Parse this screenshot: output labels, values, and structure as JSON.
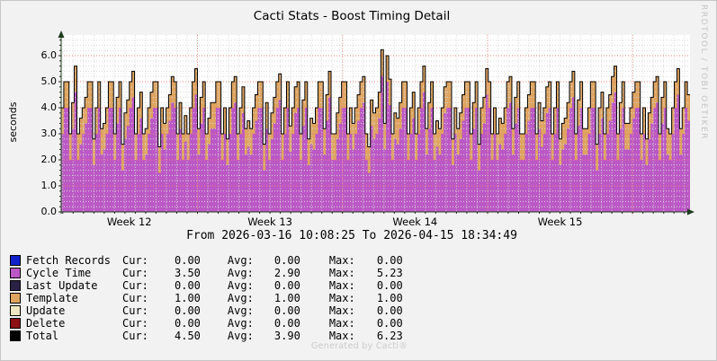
{
  "title": "Cacti Stats - Boost Timing Detail",
  "watermark_right": "RRDTOOL / TOBI OETIKER",
  "footer": "Generated by Cacti®",
  "y_axis": {
    "label": "seconds",
    "tick_labels": [
      "0.0",
      "1.0",
      "2.0",
      "3.0",
      "4.0",
      "5.0",
      "6.0"
    ]
  },
  "x_axis": {
    "week_labels": [
      "Week 12",
      "Week 13",
      "Week 14",
      "Week 15"
    ],
    "from_line": "From 2026-03-16 10:08:25 To 2026-04-15 18:34:49"
  },
  "legend": {
    "col_labels": [
      "Cur:",
      "Avg:",
      "Max:"
    ],
    "rows": [
      {
        "name": "Fetch Records",
        "color": "#1122CC",
        "cur": "0.00",
        "avg": "0.00",
        "max": "0.00"
      },
      {
        "name": "Cycle Time",
        "color": "#BB58C5",
        "cur": "3.50",
        "avg": "2.90",
        "max": "5.23"
      },
      {
        "name": "Last Update",
        "color": "#2A2244",
        "cur": "0.00",
        "avg": "0.00",
        "max": "0.00"
      },
      {
        "name": "Template",
        "color": "#DFA45F",
        "cur": "1.00",
        "avg": "1.00",
        "max": "1.00"
      },
      {
        "name": "Update",
        "color": "#EDE8C2",
        "cur": "0.00",
        "avg": "0.00",
        "max": "0.00"
      },
      {
        "name": "Delete",
        "color": "#8C1014",
        "cur": "0.00",
        "avg": "0.00",
        "max": "0.00"
      },
      {
        "name": "Total",
        "color": "#000000",
        "cur": "4.50",
        "avg": "3.90",
        "max": "6.23"
      }
    ]
  },
  "chart_data": {
    "type": "area",
    "title": "Cacti Stats - Boost Timing Detail",
    "xlabel": "",
    "ylabel": "seconds",
    "ylim": [
      0,
      6.8
    ],
    "x_range": [
      "2026-03-16 10:08:25",
      "2026-04-15 18:34:49"
    ],
    "grid": {
      "horizontal_minor_step": 0.2,
      "horizontal_major_step": 1.0,
      "vertical_minor_step_days": 0.5,
      "grid_on": true
    },
    "days_total": 30.35,
    "first_minor_offset_days": 0.078,
    "week_boundaries_days": [
      6.578,
      13.578,
      20.578,
      27.578
    ],
    "template_constant": 1.0,
    "total_rule": "total = cycle_time + template",
    "series_stats": [
      {
        "name": "Fetch Records",
        "cur": 0.0,
        "avg": 0.0,
        "max": 0.0
      },
      {
        "name": "Cycle Time",
        "cur": 3.5,
        "avg": 2.9,
        "max": 5.23
      },
      {
        "name": "Last Update",
        "cur": 0.0,
        "avg": 0.0,
        "max": 0.0
      },
      {
        "name": "Template",
        "cur": 1.0,
        "avg": 1.0,
        "max": 1.0
      },
      {
        "name": "Update",
        "cur": 0.0,
        "avg": 0.0,
        "max": 0.0
      },
      {
        "name": "Delete",
        "cur": 0.0,
        "avg": 0.0,
        "max": 0.0
      },
      {
        "name": "Total",
        "cur": 4.5,
        "avg": 3.9,
        "max": 6.23
      }
    ],
    "samples_per_day": 8,
    "cycle_time_daily_samples": [
      [
        3.0,
        4.0,
        4.0,
        2.0,
        3.2,
        4.6,
        2.0,
        2.6
      ],
      [
        3.0,
        3.4,
        4.0,
        4.0,
        1.8,
        3.0,
        4.0,
        2.2
      ],
      [
        2.4,
        3.0,
        4.0,
        4.0,
        2.0,
        3.4,
        4.0,
        1.6
      ],
      [
        2.8,
        3.3,
        4.0,
        4.4,
        2.0,
        3.0,
        3.6,
        2.0
      ],
      [
        2.2,
        3.0,
        3.6,
        4.0,
        4.0,
        1.5,
        3.0,
        2.4
      ],
      [
        3.0,
        3.5,
        4.2,
        4.0,
        2.0,
        3.2,
        2.0,
        2.7
      ],
      [
        2.0,
        3.0,
        4.0,
        4.5,
        2.2,
        3.4,
        4.0,
        2.0
      ],
      [
        2.6,
        3.2,
        3.2,
        4.0,
        4.0,
        2.0,
        3.0,
        1.8
      ],
      [
        3.0,
        4.0,
        4.2,
        2.0,
        3.0,
        3.8,
        2.2,
        2.5
      ],
      [
        2.2,
        3.0,
        3.5,
        4.0,
        4.0,
        1.6,
        3.2,
        2.0
      ],
      [
        2.8,
        3.4,
        4.0,
        4.3,
        2.0,
        3.0,
        4.0,
        2.3
      ],
      [
        3.0,
        3.8,
        4.0,
        2.0,
        3.3,
        4.0,
        1.8,
        2.6
      ],
      [
        2.4,
        3.0,
        4.0,
        4.0,
        2.2,
        3.5,
        4.4,
        2.0
      ],
      [
        2.0,
        2.8,
        3.4,
        4.0,
        4.0,
        2.0,
        3.0,
        2.4
      ],
      [
        3.0,
        3.5,
        4.0,
        4.2,
        2.0,
        1.5,
        3.3,
        2.8
      ],
      [
        3.0,
        3.6,
        5.23,
        2.4,
        5.0,
        4.1,
        2.0,
        2.8
      ],
      [
        2.6,
        3.2,
        4.0,
        4.0,
        2.0,
        3.0,
        3.6,
        2.0
      ],
      [
        3.0,
        4.0,
        4.6,
        2.2,
        3.2,
        4.0,
        2.0,
        2.5
      ],
      [
        2.2,
        3.0,
        3.8,
        4.0,
        4.0,
        1.8,
        3.0,
        2.2
      ],
      [
        2.8,
        3.5,
        4.0,
        4.0,
        2.0,
        3.2,
        4.0,
        1.6
      ],
      [
        3.0,
        3.4,
        4.5,
        4.0,
        2.0,
        3.0,
        2.0,
        2.6
      ],
      [
        2.4,
        3.0,
        4.0,
        4.2,
        2.2,
        3.4,
        4.0,
        2.0
      ],
      [
        2.0,
        3.0,
        3.5,
        4.0,
        4.0,
        2.0,
        3.2,
        2.5
      ],
      [
        3.0,
        3.8,
        4.0,
        2.0,
        3.0,
        4.0,
        1.8,
        2.4
      ],
      [
        2.6,
        3.2,
        4.0,
        4.4,
        2.0,
        3.3,
        4.0,
        2.2
      ],
      [
        2.2,
        3.0,
        4.0,
        4.0,
        1.6,
        3.0,
        3.6,
        2.0
      ],
      [
        3.0,
        3.5,
        4.2,
        4.6,
        2.0,
        3.2,
        4.0,
        2.4
      ],
      [
        2.4,
        3.0,
        3.6,
        4.0,
        4.0,
        2.0,
        3.0,
        1.8
      ],
      [
        2.8,
        3.4,
        4.0,
        4.2,
        2.0,
        3.4,
        4.0,
        2.2
      ],
      [
        2.0,
        3.0,
        4.0,
        4.5,
        2.2,
        3.0,
        4.0,
        3.5
      ]
    ],
    "colors": {
      "cycle_time_fill": "#BB58C5",
      "template_fill": "#DFA45F",
      "total_line": "#000000",
      "plot_background": "#FFFFFF",
      "canvas_background": "#F2F2F2",
      "grid_minor": "#D9D9D9",
      "grid_major": "#F08576",
      "axis": "#1F3B1F",
      "tick": "#222222"
    }
  }
}
